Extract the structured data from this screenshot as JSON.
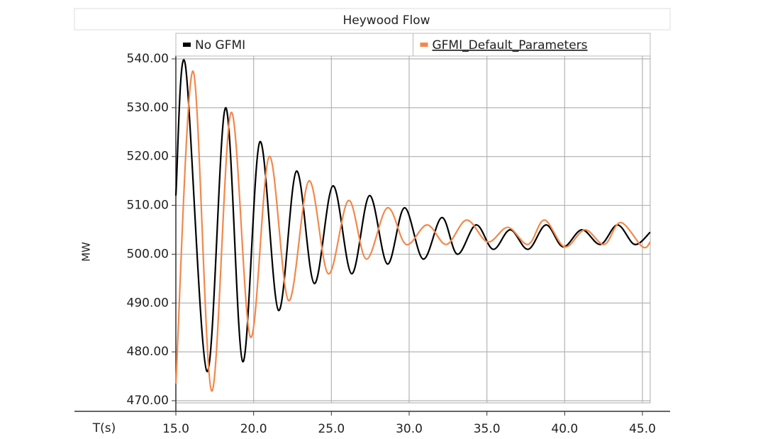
{
  "chart_data": {
    "type": "line",
    "title": "Heywood Flow",
    "x_label": "T(s)",
    "y_label": "MW",
    "xlim": [
      15,
      45.5
    ],
    "xticks": [
      {
        "value": 15,
        "label": "15.0"
      },
      {
        "value": 20,
        "label": "20.0"
      },
      {
        "value": 25,
        "label": "25.0"
      },
      {
        "value": 30,
        "label": "30.0"
      },
      {
        "value": 35,
        "label": "35.0"
      },
      {
        "value": 40,
        "label": "40.0"
      },
      {
        "value": 45,
        "label": "45.0"
      }
    ],
    "ylim": [
      470,
      540
    ],
    "yticks": [
      {
        "value": 470,
        "label": "470.00"
      },
      {
        "value": 480,
        "label": "480.00"
      },
      {
        "value": 490,
        "label": "490.00"
      },
      {
        "value": 500,
        "label": "500.00"
      },
      {
        "value": 510,
        "label": "510.00"
      },
      {
        "value": 520,
        "label": "520.00"
      },
      {
        "value": 530,
        "label": "530.00"
      },
      {
        "value": 540,
        "label": "540.00"
      }
    ],
    "grid": true,
    "legend": "top",
    "series": [
      {
        "name": "No GFMI",
        "color": "#000000",
        "x": [
          15.0,
          15.6,
          17.0,
          18.2,
          19.3,
          20.4,
          21.6,
          22.75,
          23.9,
          25.1,
          26.3,
          27.45,
          28.6,
          29.7,
          30.9,
          32.1,
          33.1,
          34.3,
          35.4,
          36.5,
          37.65,
          38.8,
          39.9,
          41.1,
          42.3,
          43.4,
          44.5,
          45.5
        ],
        "values": [
          512,
          539,
          476,
          530,
          478,
          523,
          488.5,
          517,
          494,
          514,
          496,
          512,
          498,
          509.5,
          499,
          507.5,
          500,
          506,
          501,
          505,
          501,
          506,
          501.5,
          505,
          502,
          506,
          502,
          504.5
        ]
      },
      {
        "name": "GFMI_Default_Parameters",
        "color": "#f4874b",
        "x": [
          15.0,
          16.1,
          17.3,
          18.55,
          19.8,
          21.0,
          22.25,
          23.55,
          24.8,
          26.1,
          27.25,
          28.6,
          29.8,
          31.15,
          32.4,
          33.7,
          35.05,
          36.35,
          37.65,
          38.7,
          40.0,
          41.3,
          42.55,
          43.6,
          45.0,
          45.5
        ],
        "values": [
          473.5,
          537.5,
          472,
          529,
          483,
          520,
          490.5,
          515,
          496,
          511,
          499,
          509.5,
          502,
          506,
          502,
          507,
          502.5,
          505.5,
          502,
          507,
          501.5,
          505,
          502,
          506.5,
          501.5,
          502.5
        ]
      }
    ]
  }
}
